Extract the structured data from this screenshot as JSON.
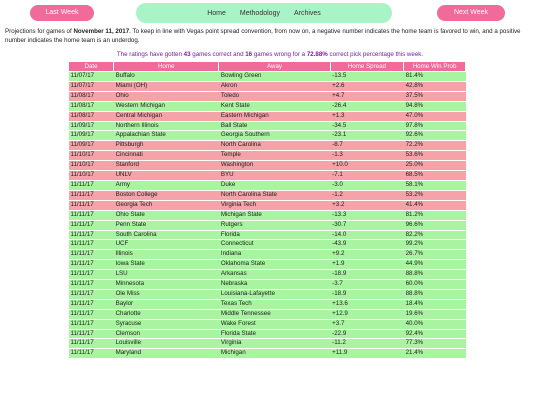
{
  "nav": {
    "prev": "Last Week",
    "next": "Next Week",
    "links": [
      "Home",
      "Methodology",
      "Archives"
    ]
  },
  "intro": {
    "p1": "Projections for games of ",
    "date_bold": "November 11, 2017",
    "p2": ". To keep in line with Vegas point spread convention, from now on, a negative number indicates the home team is favored to win, and a positive number indicates the home team is an underdog."
  },
  "summary": {
    "s1": "The ratings have gotten ",
    "correct": "43",
    "s2": " games correct and ",
    "wrong": "16",
    "s3": " games wrong for a ",
    "pct": "72.88%",
    "s4": " correct pick percentage this week."
  },
  "table": {
    "headers": [
      "Date",
      "Home",
      "Away",
      "Home Spread",
      "Home Win Prob"
    ],
    "rows": [
      {
        "date": "11/07/17",
        "home": "Buffalo",
        "away": "Bowling Green",
        "spread": "-13.5",
        "prob": "81.4%",
        "result": "win"
      },
      {
        "date": "11/07/17",
        "home": "Miami (OH)",
        "away": "Akron",
        "spread": "+2.6",
        "prob": "42.8%",
        "result": "loss"
      },
      {
        "date": "11/08/17",
        "home": "Ohio",
        "away": "Toledo",
        "spread": "+4.7",
        "prob": "37.5%",
        "result": "loss"
      },
      {
        "date": "11/08/17",
        "home": "Western Michigan",
        "away": "Kent State",
        "spread": "-26.4",
        "prob": "94.8%",
        "result": "win"
      },
      {
        "date": "11/08/17",
        "home": "Central Michigan",
        "away": "Eastern Michigan",
        "spread": "+1.3",
        "prob": "47.0%",
        "result": "loss"
      },
      {
        "date": "11/09/17",
        "home": "Northern Illinois",
        "away": "Ball State",
        "spread": "-34.5",
        "prob": "97.8%",
        "result": "win"
      },
      {
        "date": "11/09/17",
        "home": "Appalachian State",
        "away": "Georgia Southern",
        "spread": "-23.1",
        "prob": "92.6%",
        "result": "win"
      },
      {
        "date": "11/09/17",
        "home": "Pittsburgh",
        "away": "North Carolina",
        "spread": "-8.7",
        "prob": "72.2%",
        "result": "loss"
      },
      {
        "date": "11/10/17",
        "home": "Cincinnati",
        "away": "Temple",
        "spread": "-1.3",
        "prob": "53.6%",
        "result": "loss"
      },
      {
        "date": "11/10/17",
        "home": "Stanford",
        "away": "Washington",
        "spread": "+10.0",
        "prob": "25.0%",
        "result": "loss"
      },
      {
        "date": "11/10/17",
        "home": "UNLV",
        "away": "BYU",
        "spread": "-7.1",
        "prob": "68.5%",
        "result": "loss"
      },
      {
        "date": "11/11/17",
        "home": "Army",
        "away": "Duke",
        "spread": "-3.0",
        "prob": "58.1%",
        "result": "win"
      },
      {
        "date": "11/11/17",
        "home": "Boston College",
        "away": "North Carolina State",
        "spread": "-1.2",
        "prob": "53.2%",
        "result": "loss"
      },
      {
        "date": "11/11/17",
        "home": "Georgia Tech",
        "away": "Virginia Tech",
        "spread": "+3.2",
        "prob": "41.4%",
        "result": "loss"
      },
      {
        "date": "11/11/17",
        "home": "Ohio State",
        "away": "Michigan State",
        "spread": "-13.3",
        "prob": "81.2%",
        "result": "win"
      },
      {
        "date": "11/11/17",
        "home": "Penn State",
        "away": "Rutgers",
        "spread": "-30.7",
        "prob": "96.6%",
        "result": "win"
      },
      {
        "date": "11/11/17",
        "home": "South Carolina",
        "away": "Florida",
        "spread": "-14.0",
        "prob": "82.2%",
        "result": "win"
      },
      {
        "date": "11/11/17",
        "home": "UCF",
        "away": "Connecticut",
        "spread": "-43.9",
        "prob": "99.2%",
        "result": "win"
      },
      {
        "date": "11/11/17",
        "home": "Illinois",
        "away": "Indiana",
        "spread": "+9.2",
        "prob": "26.7%",
        "result": "win"
      },
      {
        "date": "11/11/17",
        "home": "Iowa State",
        "away": "Oklahoma State",
        "spread": "+1.9",
        "prob": "44.9%",
        "result": "win"
      },
      {
        "date": "11/11/17",
        "home": "LSU",
        "away": "Arkansas",
        "spread": "-18.9",
        "prob": "88.8%",
        "result": "win"
      },
      {
        "date": "11/11/17",
        "home": "Minnesota",
        "away": "Nebraska",
        "spread": "-3.7",
        "prob": "60.0%",
        "result": "win"
      },
      {
        "date": "11/11/17",
        "home": "Ole Miss",
        "away": "Louisiana-Lafayette",
        "spread": "-18.9",
        "prob": "88.8%",
        "result": "win"
      },
      {
        "date": "11/11/17",
        "home": "Baylor",
        "away": "Texas Tech",
        "spread": "+13.6",
        "prob": "18.4%",
        "result": "win"
      },
      {
        "date": "11/11/17",
        "home": "Charlotte",
        "away": "Middle Tennessee",
        "spread": "+12.9",
        "prob": "19.6%",
        "result": "win"
      },
      {
        "date": "11/11/17",
        "home": "Syracuse",
        "away": "Wake Forest",
        "spread": "+3.7",
        "prob": "40.0%",
        "result": "win"
      },
      {
        "date": "11/11/17",
        "home": "Clemson",
        "away": "Florida State",
        "spread": "-22.9",
        "prob": "92.4%",
        "result": "win"
      },
      {
        "date": "11/11/17",
        "home": "Louisville",
        "away": "Virginia",
        "spread": "-11.2",
        "prob": "77.3%",
        "result": "win"
      },
      {
        "date": "11/11/17",
        "home": "Maryland",
        "away": "Michigan",
        "spread": "+11.9",
        "prob": "21.4%",
        "result": "win"
      }
    ]
  },
  "colors": {
    "pink": "#f06a9a",
    "nav_green": "#a9f4c6",
    "row_win": "#a9f4a0",
    "row_loss": "#f5a3a8",
    "summary_purple": "#7a1aa6"
  }
}
